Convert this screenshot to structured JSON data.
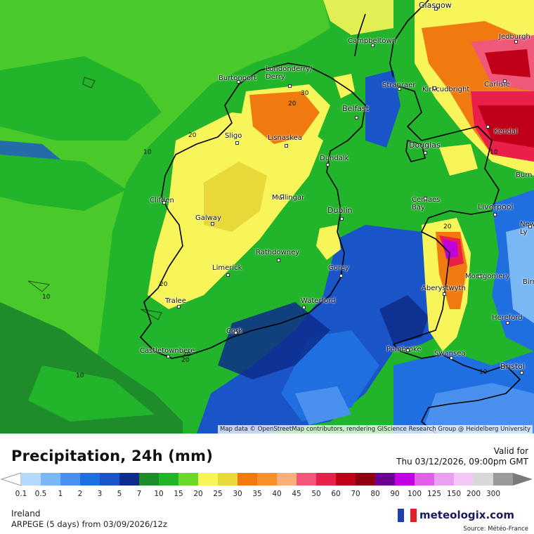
{
  "map": {
    "attribution": "Map data © OpenStreetMap contributors, rendering GIScience Research Group @ Heidelberg University",
    "cities": [
      {
        "name": "Glasgow",
        "size": "big"
      },
      {
        "name": "Jedburgh"
      },
      {
        "name": "Campbeltown"
      },
      {
        "name": "Burtonport"
      },
      {
        "name": "Londonderry/\nDerry"
      },
      {
        "name": "Stranraer"
      },
      {
        "name": "Kirkcudbright"
      },
      {
        "name": "Carlisle"
      },
      {
        "name": "Belfast",
        "size": "big"
      },
      {
        "name": "Sligo"
      },
      {
        "name": "Lisnaskea"
      },
      {
        "name": "Kendal"
      },
      {
        "name": "Douglas",
        "size": "big"
      },
      {
        "name": "Dundalk"
      },
      {
        "name": "Clifden"
      },
      {
        "name": "Mullingar"
      },
      {
        "name": "Cemaes\nBay"
      },
      {
        "name": "Liverpool",
        "size": "big"
      },
      {
        "name": "Dublin",
        "size": "big"
      },
      {
        "name": "Galway"
      },
      {
        "name": "Newca\nLy"
      },
      {
        "name": "Rathdowney"
      },
      {
        "name": "Limerick"
      },
      {
        "name": "Gorey"
      },
      {
        "name": "Montgomery"
      },
      {
        "name": "Aberystwyth"
      },
      {
        "name": "Tralee"
      },
      {
        "name": "Waterford"
      },
      {
        "name": "Hereford"
      },
      {
        "name": "Cork"
      },
      {
        "name": "Pembroke"
      },
      {
        "name": "Castletownbere"
      },
      {
        "name": "Swansea"
      },
      {
        "name": "Bristol",
        "size": "big"
      },
      {
        "name": "Birm"
      },
      {
        "name": "Burn"
      }
    ],
    "contours": [
      "30",
      "20",
      "20",
      "10",
      "10",
      "20",
      "20",
      "10",
      "10",
      "20",
      "10",
      "20"
    ]
  },
  "header": {
    "title": "Precipitation, 24h (mm)",
    "valid_label": "Valid for",
    "valid_date": "Thu 03/12/2026, 09:00pm GMT"
  },
  "legend": {
    "labels": [
      "0.1",
      "0.5",
      "1",
      "2",
      "3",
      "5",
      "7",
      "10",
      "15",
      "20",
      "25",
      "30",
      "35",
      "40",
      "45",
      "50",
      "60",
      "70",
      "80",
      "90",
      "100",
      "125",
      "150",
      "200",
      "300"
    ],
    "colors": [
      "#b3d9ff",
      "#7ab8f5",
      "#4a90ee",
      "#1f6fe0",
      "#1a55c8",
      "#0d2d8c",
      "#1e8c2a",
      "#22b52c",
      "#6ad82a",
      "#f7f55a",
      "#e8d83a",
      "#f07a10",
      "#f5902a",
      "#f7b07a",
      "#f0587a",
      "#e8204a",
      "#c00018",
      "#8c0010",
      "#6a0090",
      "#c000e0",
      "#e060e8",
      "#eaa0f0",
      "#f3c8f6",
      "#d8d8d8",
      "#9a9a9a"
    ]
  },
  "footer": {
    "region": "Ireland",
    "model": "ARPEGE (5 days) from  03/09/2026/12z",
    "brand": "meteologix.com",
    "source": "Source: Météo-France"
  }
}
